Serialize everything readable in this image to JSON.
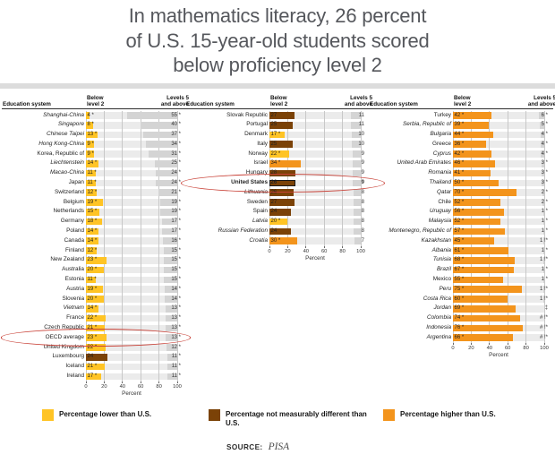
{
  "title": {
    "line1": "In mathematics literacy, 26 percent",
    "line2": "of U.S. 15-year-old students scored",
    "line3": "below proficiency level 2"
  },
  "colors": {
    "lower": "#FFC425",
    "same": "#7B4207",
    "higher": "#F3941C",
    "above_bar": "#D4D4D4",
    "track": "#EBEBEB",
    "grid": "#C8C8C8",
    "highlight_ring": "#C94238"
  },
  "legend": [
    {
      "category": "lower",
      "label": "Percentage lower than U.S."
    },
    {
      "category": "same",
      "label": "Percentage not measurably different than U.S."
    },
    {
      "category": "higher",
      "label": "Percentage higher than U.S."
    }
  ],
  "source": {
    "label": "SOURCE:",
    "value": "PISA"
  },
  "chart_data": {
    "type": "bar",
    "title": "In mathematics literacy, 26 percent of U.S. 15-year-old students scored below proficiency level 2",
    "xlabel": "Percent",
    "xlim": [
      0,
      100
    ],
    "x_ticks": [
      "0",
      "20",
      "40",
      "60",
      "80",
      "100"
    ],
    "columns": {
      "system": "Education system",
      "below_line1": "Below",
      "below_line2": "level 2",
      "above_line1": "Levels 5",
      "above_line2": "and above"
    },
    "highlights": [
      "OECD average",
      "United States"
    ],
    "panels": [
      {
        "rows": [
          {
            "system": "Shanghai-China",
            "italic": true,
            "cat": "lower",
            "below": 4,
            "below_label": "4 *",
            "above": 55,
            "above_label": "55 *"
          },
          {
            "system": "Singapore",
            "italic": true,
            "cat": "lower",
            "below": 8,
            "below_label": "8 *",
            "above": 40,
            "above_label": "40 *"
          },
          {
            "system": "Chinese Taipei",
            "italic": true,
            "cat": "lower",
            "below": 13,
            "below_label": "13 *",
            "above": 37,
            "above_label": "37 *"
          },
          {
            "system": "Hong Kong-China",
            "italic": true,
            "cat": "lower",
            "below": 9,
            "below_label": "9 *",
            "above": 34,
            "above_label": "34 *"
          },
          {
            "system": "Korea, Republic of",
            "italic": false,
            "cat": "lower",
            "below": 9,
            "below_label": "9 *",
            "above": 31,
            "above_label": "31 *"
          },
          {
            "system": "Liechtenstein",
            "italic": true,
            "cat": "lower",
            "below": 14,
            "below_label": "14 *",
            "above": 25,
            "above_label": "25 *"
          },
          {
            "system": "Macao-China",
            "italic": true,
            "cat": "lower",
            "below": 11,
            "below_label": "11 *",
            "above": 24,
            "above_label": "24 *"
          },
          {
            "system": "Japan",
            "italic": false,
            "cat": "lower",
            "below": 11,
            "below_label": "11 *",
            "above": 24,
            "above_label": "24 *"
          },
          {
            "system": "Switzerland",
            "italic": false,
            "cat": "lower",
            "below": 12,
            "below_label": "12 *",
            "above": 21,
            "above_label": "21 *"
          },
          {
            "system": "Belgium",
            "italic": false,
            "cat": "lower",
            "below": 19,
            "below_label": "19 *",
            "above": 19,
            "above_label": "19 *"
          },
          {
            "system": "Netherlands",
            "italic": false,
            "cat": "lower",
            "below": 15,
            "below_label": "15 *",
            "above": 19,
            "above_label": "19 *"
          },
          {
            "system": "Germany",
            "italic": false,
            "cat": "lower",
            "below": 18,
            "below_label": "18 *",
            "above": 17,
            "above_label": "17 *"
          },
          {
            "system": "Poland",
            "italic": false,
            "cat": "lower",
            "below": 14,
            "below_label": "14 *",
            "above": 17,
            "above_label": "17 *"
          },
          {
            "system": "Canada",
            "italic": false,
            "cat": "lower",
            "below": 14,
            "below_label": "14 *",
            "above": 16,
            "above_label": "16 *"
          },
          {
            "system": "Finland",
            "italic": false,
            "cat": "lower",
            "below": 12,
            "below_label": "12 *",
            "above": 15,
            "above_label": "15 *"
          },
          {
            "system": "New Zealand",
            "italic": false,
            "cat": "lower",
            "below": 23,
            "below_label": "23 *",
            "above": 15,
            "above_label": "15 *"
          },
          {
            "system": "Australia",
            "italic": false,
            "cat": "lower",
            "below": 20,
            "below_label": "20 *",
            "above": 15,
            "above_label": "15 *"
          },
          {
            "system": "Estonia",
            "italic": false,
            "cat": "lower",
            "below": 11,
            "below_label": "11 *",
            "above": 15,
            "above_label": "15 *"
          },
          {
            "system": "Austria",
            "italic": false,
            "cat": "lower",
            "below": 19,
            "below_label": "19 *",
            "above": 14,
            "above_label": "14 *"
          },
          {
            "system": "Slovenia",
            "italic": false,
            "cat": "lower",
            "below": 20,
            "below_label": "20 *",
            "above": 14,
            "above_label": "14 *"
          },
          {
            "system": "Vietnam",
            "italic": true,
            "cat": "lower",
            "below": 14,
            "below_label": "14 *",
            "above": 13,
            "above_label": "13 *"
          },
          {
            "system": "France",
            "italic": false,
            "cat": "lower",
            "below": 22,
            "below_label": "22 *",
            "above": 13,
            "above_label": "13 *"
          },
          {
            "system": "Czech Republic",
            "italic": false,
            "cat": "lower",
            "below": 21,
            "below_label": "21 *",
            "above": 13,
            "above_label": "13 *"
          },
          {
            "system": "OECD average",
            "italic": false,
            "cat": "lower",
            "below": 23,
            "below_label": "23 *",
            "above": 13,
            "above_label": "13 *",
            "circled": true
          },
          {
            "system": "United Kingdom",
            "italic": false,
            "cat": "lower",
            "below": 22,
            "below_label": "22 *",
            "above": 12,
            "above_label": "12 *"
          },
          {
            "system": "Luxembourg",
            "italic": false,
            "cat": "same",
            "below": 24,
            "below_label": "24",
            "above": 11,
            "above_label": "11 *"
          },
          {
            "system": "Iceland",
            "italic": false,
            "cat": "lower",
            "below": 21,
            "below_label": "21 *",
            "above": 11,
            "above_label": "11 *"
          },
          {
            "system": "Ireland",
            "italic": false,
            "cat": "lower",
            "below": 17,
            "below_label": "17 *",
            "above": 11,
            "above_label": "11 *"
          }
        ]
      },
      {
        "rows": [
          {
            "system": "Slovak Republic",
            "italic": false,
            "cat": "same",
            "below": 27,
            "below_label": "27",
            "above": 11,
            "above_label": "11"
          },
          {
            "system": "Portugal",
            "italic": false,
            "cat": "same",
            "below": 25,
            "below_label": "25",
            "above": 11,
            "above_label": "11"
          },
          {
            "system": "Denmark",
            "italic": false,
            "cat": "lower",
            "below": 17,
            "below_label": "17 *",
            "above": 10,
            "above_label": "10"
          },
          {
            "system": "Italy",
            "italic": false,
            "cat": "same",
            "below": 25,
            "below_label": "25",
            "above": 10,
            "above_label": "10"
          },
          {
            "system": "Norway",
            "italic": false,
            "cat": "lower",
            "below": 22,
            "below_label": "22 *",
            "above": 9,
            "above_label": "9"
          },
          {
            "system": "Israel",
            "italic": false,
            "cat": "higher",
            "below": 34,
            "below_label": "34 *",
            "above": 9,
            "above_label": "9"
          },
          {
            "system": "Hungary",
            "italic": false,
            "cat": "same",
            "below": 28,
            "below_label": "28",
            "above": 9,
            "above_label": "9"
          },
          {
            "system": "United States",
            "italic": false,
            "cat": "same",
            "below": 26,
            "below_label": "26",
            "above": 9,
            "above_label": "9",
            "bold": true,
            "circled": true,
            "outlined": true
          },
          {
            "system": "Lithuania",
            "italic": true,
            "cat": "same",
            "below": 26,
            "below_label": "26",
            "above": 8,
            "above_label": "8"
          },
          {
            "system": "Sweden",
            "italic": false,
            "cat": "same",
            "below": 27,
            "below_label": "27",
            "above": 8,
            "above_label": "8"
          },
          {
            "system": "Spain",
            "italic": false,
            "cat": "same",
            "below": 24,
            "below_label": "24",
            "above": 8,
            "above_label": "8"
          },
          {
            "system": "Latvia",
            "italic": true,
            "cat": "lower",
            "below": 20,
            "below_label": "20 *",
            "above": 8,
            "above_label": "8"
          },
          {
            "system": "Russian Federation",
            "italic": true,
            "cat": "same",
            "below": 24,
            "below_label": "24",
            "above": 8,
            "above_label": "8"
          },
          {
            "system": "Croatia",
            "italic": true,
            "cat": "higher",
            "below": 30,
            "below_label": "30 *",
            "above": 7,
            "above_label": "7"
          }
        ]
      },
      {
        "rows": [
          {
            "system": "Turkey",
            "italic": false,
            "cat": "higher",
            "below": 42,
            "below_label": "42 *",
            "above": 6,
            "above_label": "6 *"
          },
          {
            "system": "Serbia, Republic of",
            "italic": true,
            "cat": "higher",
            "below": 39,
            "below_label": "39 *",
            "above": 5,
            "above_label": "5 *"
          },
          {
            "system": "Bulgaria",
            "italic": true,
            "cat": "higher",
            "below": 44,
            "below_label": "44 *",
            "above": 4,
            "above_label": "4 *"
          },
          {
            "system": "Greece",
            "italic": false,
            "cat": "higher",
            "below": 36,
            "below_label": "36 *",
            "above": 4,
            "above_label": "4 *"
          },
          {
            "system": "Cyprus",
            "italic": true,
            "cat": "higher",
            "below": 42,
            "below_label": "42 *",
            "above": 4,
            "above_label": "4 *"
          },
          {
            "system": "United Arab Emirates",
            "italic": true,
            "cat": "higher",
            "below": 46,
            "below_label": "46 *",
            "above": 3,
            "above_label": "3 *"
          },
          {
            "system": "Romania",
            "italic": true,
            "cat": "higher",
            "below": 41,
            "below_label": "41 *",
            "above": 3,
            "above_label": "3 *"
          },
          {
            "system": "Thailand",
            "italic": true,
            "cat": "higher",
            "below": 50,
            "below_label": "50 *",
            "above": 3,
            "above_label": "3 *"
          },
          {
            "system": "Qatar",
            "italic": true,
            "cat": "higher",
            "below": 70,
            "below_label": "70 *",
            "above": 2,
            "above_label": "2 *"
          },
          {
            "system": "Chile",
            "italic": false,
            "cat": "higher",
            "below": 52,
            "below_label": "52 *",
            "above": 2,
            "above_label": "2 *"
          },
          {
            "system": "Uruguay",
            "italic": true,
            "cat": "higher",
            "below": 56,
            "below_label": "56 *",
            "above": 1,
            "above_label": "1 *"
          },
          {
            "system": "Malaysia",
            "italic": true,
            "cat": "higher",
            "below": 52,
            "below_label": "52 *",
            "above": 1,
            "above_label": "1 *"
          },
          {
            "system": "Montenegro, Republic of",
            "italic": true,
            "cat": "higher",
            "below": 57,
            "below_label": "57 *",
            "above": 1,
            "above_label": "1 *"
          },
          {
            "system": "Kazakhstan",
            "italic": true,
            "cat": "higher",
            "below": 45,
            "below_label": "45 *",
            "above": 1,
            "above_label": "1 !*"
          },
          {
            "system": "Albania",
            "italic": true,
            "cat": "higher",
            "below": 61,
            "below_label": "61 *",
            "above": 1,
            "above_label": "1 *"
          },
          {
            "system": "Tunisia",
            "italic": true,
            "cat": "higher",
            "below": 68,
            "below_label": "68 *",
            "above": 1,
            "above_label": "1 !*"
          },
          {
            "system": "Brazil",
            "italic": true,
            "cat": "higher",
            "below": 67,
            "below_label": "67 *",
            "above": 1,
            "above_label": "1 *"
          },
          {
            "system": "Mexico",
            "italic": false,
            "cat": "higher",
            "below": 55,
            "below_label": "55 *",
            "above": 1,
            "above_label": "1 *"
          },
          {
            "system": "Peru",
            "italic": true,
            "cat": "higher",
            "below": 75,
            "below_label": "75 *",
            "above": 1,
            "above_label": "1 !*"
          },
          {
            "system": "Costa Rica",
            "italic": true,
            "cat": "higher",
            "below": 60,
            "below_label": "60 *",
            "above": 1,
            "above_label": "1 !*"
          },
          {
            "system": "Jordan",
            "italic": true,
            "cat": "higher",
            "below": 69,
            "below_label": "69 *",
            "above": 0,
            "above_label": "‡"
          },
          {
            "system": "Colombia",
            "italic": true,
            "cat": "higher",
            "below": 74,
            "below_label": "74 *",
            "above": 0,
            "above_label": "# !*"
          },
          {
            "system": "Indonesia",
            "italic": true,
            "cat": "higher",
            "below": 76,
            "below_label": "76 *",
            "above": 0,
            "above_label": "# !*"
          },
          {
            "system": "Argentina",
            "italic": true,
            "cat": "higher",
            "below": 66,
            "below_label": "66 *",
            "above": 0,
            "above_label": "# !*"
          }
        ]
      }
    ]
  }
}
